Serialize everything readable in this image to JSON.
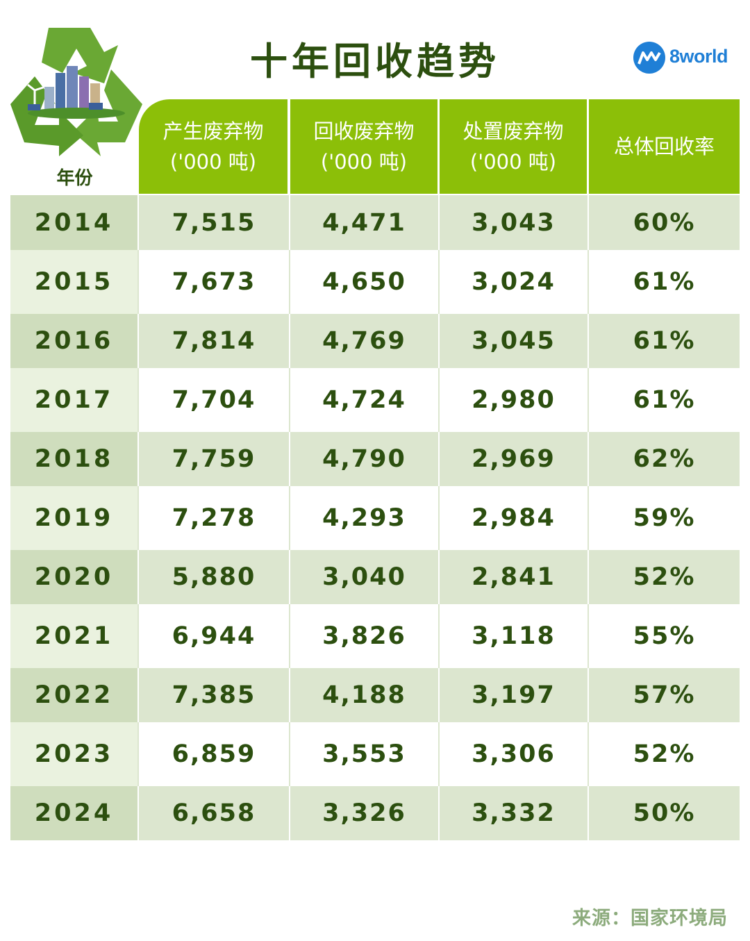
{
  "title": "十年回收趋势",
  "brand": {
    "name": "8world",
    "color": "#1f7fd6"
  },
  "colors": {
    "header_green": "#8cbf08",
    "text_dark_green": "#2c4f0f",
    "row_shade": "#dce6cf"
  },
  "chart_data": {
    "type": "table",
    "row_header_label": "年份",
    "columns": [
      {
        "line1": "产生废弃物",
        "line2": "('000 吨)"
      },
      {
        "line1": "回收废弃物",
        "line2": "('000 吨)"
      },
      {
        "line1": "处置废弃物",
        "line2": "('000 吨)"
      },
      {
        "line1": "总体回收率",
        "line2": ""
      }
    ],
    "rows": [
      {
        "year": "2014",
        "generated": "7,515",
        "recycled": "4,471",
        "disposed": "3,043",
        "rate": "60%"
      },
      {
        "year": "2015",
        "generated": "7,673",
        "recycled": "4,650",
        "disposed": "3,024",
        "rate": "61%"
      },
      {
        "year": "2016",
        "generated": "7,814",
        "recycled": "4,769",
        "disposed": "3,045",
        "rate": "61%"
      },
      {
        "year": "2017",
        "generated": "7,704",
        "recycled": "4,724",
        "disposed": "2,980",
        "rate": "61%"
      },
      {
        "year": "2018",
        "generated": "7,759",
        "recycled": "4,790",
        "disposed": "2,969",
        "rate": "62%"
      },
      {
        "year": "2019",
        "generated": "7,278",
        "recycled": "4,293",
        "disposed": "2,984",
        "rate": "59%"
      },
      {
        "year": "2020",
        "generated": "5,880",
        "recycled": "3,040",
        "disposed": "2,841",
        "rate": "52%"
      },
      {
        "year": "2021",
        "generated": "6,944",
        "recycled": "3,826",
        "disposed": "3,118",
        "rate": "55%"
      },
      {
        "year": "2022",
        "generated": "7,385",
        "recycled": "4,188",
        "disposed": "3,197",
        "rate": "57%"
      },
      {
        "year": "2023",
        "generated": "6,859",
        "recycled": "3,553",
        "disposed": "3,306",
        "rate": "52%"
      },
      {
        "year": "2024",
        "generated": "6,658",
        "recycled": "3,326",
        "disposed": "3,332",
        "rate": "50%"
      }
    ]
  },
  "source": "来源：国家环境局"
}
